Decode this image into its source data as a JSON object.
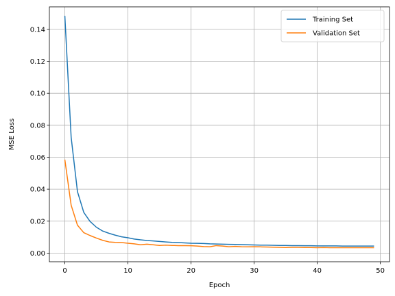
{
  "chart_data": {
    "type": "line",
    "title": "",
    "xlabel": "Epoch",
    "ylabel": "MSE Loss",
    "xlim": [
      -2.45,
      51.45
    ],
    "ylim": [
      -0.0054,
      0.1541
    ],
    "xticks": [
      0,
      10,
      20,
      30,
      40,
      50
    ],
    "xtick_labels": [
      "0",
      "10",
      "20",
      "30",
      "40",
      "50"
    ],
    "yticks": [
      0.0,
      0.02,
      0.04,
      0.06,
      0.08,
      0.1,
      0.12,
      0.14
    ],
    "ytick_labels": [
      "0.00",
      "0.02",
      "0.04",
      "0.06",
      "0.08",
      "0.10",
      "0.12",
      "0.14"
    ],
    "grid": true,
    "legend_position": "top-right",
    "x": [
      0,
      1,
      2,
      3,
      4,
      5,
      6,
      7,
      8,
      9,
      10,
      11,
      12,
      13,
      14,
      15,
      16,
      17,
      18,
      19,
      20,
      21,
      22,
      23,
      24,
      25,
      26,
      27,
      28,
      29,
      30,
      31,
      32,
      33,
      34,
      35,
      36,
      37,
      38,
      39,
      40,
      41,
      42,
      43,
      44,
      45,
      46,
      47,
      48,
      49
    ],
    "series": [
      {
        "name": "Training Set",
        "color": "#1f77b4",
        "values": [
          0.1485,
          0.0725,
          0.0385,
          0.0255,
          0.0198,
          0.0162,
          0.0138,
          0.0124,
          0.0112,
          0.0102,
          0.0096,
          0.0088,
          0.0083,
          0.0079,
          0.0076,
          0.0073,
          0.007,
          0.0067,
          0.0066,
          0.0064,
          0.0062,
          0.0061,
          0.006,
          0.0058,
          0.0057,
          0.0056,
          0.0055,
          0.0054,
          0.0053,
          0.0052,
          0.0051,
          0.005,
          0.005,
          0.0049,
          0.0048,
          0.0048,
          0.0047,
          0.0047,
          0.0046,
          0.0046,
          0.0045,
          0.0045,
          0.0045,
          0.0045,
          0.0044,
          0.0044,
          0.0044,
          0.0044,
          0.0044,
          0.0044
        ]
      },
      {
        "name": "Validation Set",
        "color": "#ff7f0e",
        "values": [
          0.0585,
          0.03,
          0.0175,
          0.0128,
          0.011,
          0.0094,
          0.008,
          0.007,
          0.0067,
          0.0066,
          0.0062,
          0.0058,
          0.0052,
          0.0056,
          0.0052,
          0.0048,
          0.005,
          0.0048,
          0.0047,
          0.0047,
          0.0046,
          0.0044,
          0.0041,
          0.004,
          0.0047,
          0.0044,
          0.004,
          0.0042,
          0.004,
          0.0039,
          0.004,
          0.0039,
          0.0038,
          0.0037,
          0.0036,
          0.0035,
          0.0036,
          0.0036,
          0.0035,
          0.0035,
          0.0034,
          0.0035,
          0.0034,
          0.0034,
          0.0034,
          0.0034,
          0.0034,
          0.0034,
          0.0034,
          0.0034
        ]
      }
    ]
  }
}
